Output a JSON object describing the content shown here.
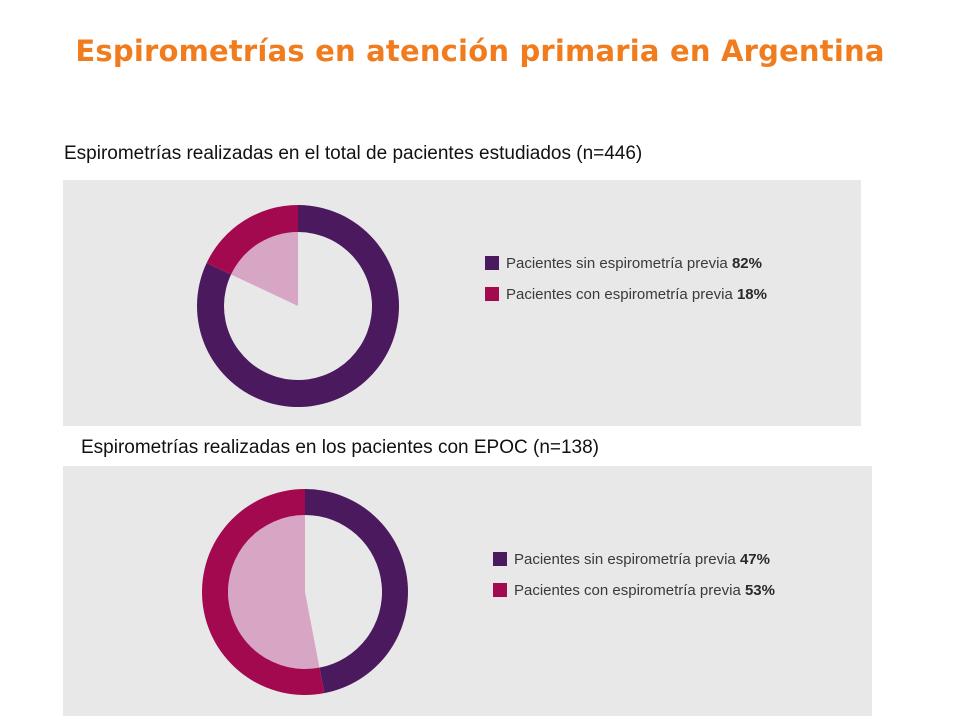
{
  "page": {
    "title": "Espirometrías en atención primaria en Argentina"
  },
  "colors": {
    "title": "#f07c1e",
    "sin": "#4b1a5e",
    "con": "#a3094e",
    "con_inner": "#d6a6c4",
    "panel_bg": "#e9e8e9",
    "center_bg": "#e9e8e9"
  },
  "chart_data": [
    {
      "type": "pie",
      "subtitle": "Espirometrías realizadas en el total de pacientes estudiados (n=446)",
      "categories": [
        "Pacientes sin espirometría previa",
        "Pacientes con espirometría previa"
      ],
      "values": [
        82,
        18
      ],
      "value_labels": [
        "82%",
        "18%"
      ],
      "legend_placement": "right"
    },
    {
      "type": "pie",
      "subtitle": "Espirometrías realizadas en los pacientes con EPOC (n=138)",
      "categories": [
        "Pacientes sin espirometría previa",
        "Pacientes con espirometría previa"
      ],
      "values": [
        47,
        53
      ],
      "value_labels": [
        "47%",
        "53%"
      ],
      "legend_placement": "right"
    }
  ]
}
